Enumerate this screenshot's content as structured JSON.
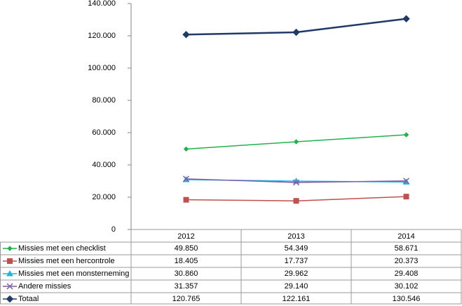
{
  "chart_data": {
    "type": "line",
    "categories": [
      "2012",
      "2013",
      "2014"
    ],
    "ylim": [
      0,
      140000
    ],
    "yticks": [
      0,
      {
        "value": 20000,
        "label": "20.000"
      },
      {
        "value": 40000,
        "label": "40.000"
      },
      {
        "value": 60000,
        "label": "60.000"
      },
      {
        "value": 80000,
        "label": "80.000"
      },
      {
        "value": 100000,
        "label": "100.000"
      },
      {
        "value": 120000,
        "label": "120.000"
      },
      {
        "value": 140000,
        "label": "140.000"
      }
    ],
    "grid": false,
    "data_table": true,
    "series": [
      {
        "name": "Missies met een checklist",
        "color": "#22b24c",
        "marker": "diamond-small",
        "values": [
          49850,
          54349,
          58671
        ],
        "value_labels": [
          "49.850",
          "54.349",
          "58.671"
        ]
      },
      {
        "name": "Missies met een hercontrole",
        "color": "#c0504d",
        "marker": "square",
        "values": [
          18405,
          17737,
          20373
        ],
        "value_labels": [
          "18.405",
          "17.737",
          "20.373"
        ]
      },
      {
        "name": "Missies met een monsterneming",
        "color": "#1fb3e0",
        "marker": "triangle",
        "values": [
          30860,
          29962,
          29408
        ],
        "value_labels": [
          "30.860",
          "29.962",
          "29.408"
        ]
      },
      {
        "name": "Andere missies",
        "color": "#7f5fa8",
        "marker": "x",
        "values": [
          31357,
          29140,
          30102
        ],
        "value_labels": [
          "31.357",
          "29.140",
          "30.102"
        ]
      },
      {
        "name": "Totaal",
        "color": "#1f3a68",
        "marker": "diamond",
        "values": [
          120765,
          122161,
          130546
        ],
        "value_labels": [
          "120.765",
          "122.161",
          "130.546"
        ]
      }
    ]
  }
}
